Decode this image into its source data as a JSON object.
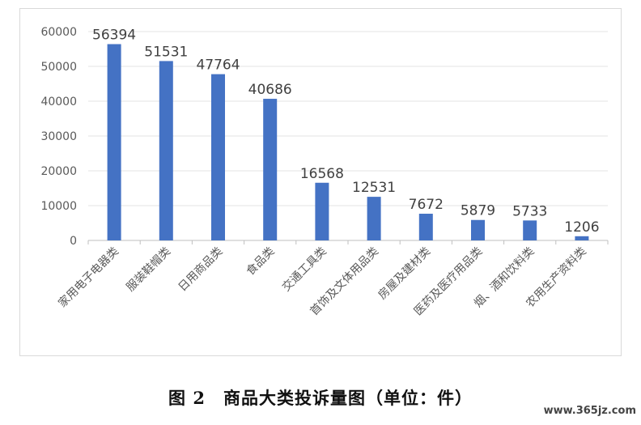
{
  "chart_data": {
    "type": "bar",
    "categories": [
      "家用电子电器类",
      "服装鞋帽类",
      "日用商品类",
      "食品类",
      "交通工具类",
      "首饰及文体用品类",
      "房屋及建材类",
      "医药及医疗用品类",
      "烟、酒和饮料类",
      "农用生产资料类"
    ],
    "values": [
      56394,
      51531,
      47764,
      40686,
      16568,
      12531,
      7672,
      5879,
      5733,
      1206
    ],
    "data_labels": [
      "56394",
      "51531",
      "47764",
      "40686",
      "16568",
      "12531",
      "7672",
      "5879",
      "5733",
      "1206"
    ],
    "y_ticks": [
      "0",
      "10000",
      "20000",
      "30000",
      "40000",
      "50000",
      "60000"
    ],
    "ylim": [
      0,
      60000
    ],
    "grid": true,
    "bar_color": "#4472c4"
  },
  "caption": "图 2　商品大类投诉量图（单位：件）",
  "watermark": "www.365jz.com"
}
